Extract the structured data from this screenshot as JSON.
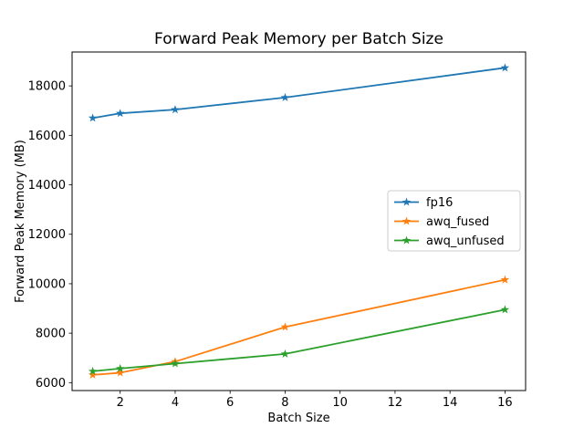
{
  "chart_data": {
    "type": "line",
    "title": "Forward Peak Memory per Batch Size",
    "xlabel": "Batch Size",
    "ylabel": "Forward Peak Memory (MB)",
    "x": [
      1,
      2,
      4,
      8,
      16
    ],
    "series": [
      {
        "name": "fp16",
        "color": "#1f77b4",
        "marker": "star",
        "values": [
          16700,
          16890,
          17040,
          17530,
          18730
        ]
      },
      {
        "name": "awq_fused",
        "color": "#ff7f0e",
        "marker": "star",
        "values": [
          6310,
          6400,
          6850,
          8250,
          10160
        ]
      },
      {
        "name": "awq_unfused",
        "color": "#2ca02c",
        "marker": "star",
        "values": [
          6460,
          6570,
          6770,
          7160,
          8950
        ]
      }
    ],
    "xticks": [
      2,
      4,
      6,
      8,
      10,
      12,
      14,
      16
    ],
    "yticks": [
      6000,
      8000,
      10000,
      12000,
      14000,
      16000,
      18000
    ],
    "xlim": [
      0.25,
      16.75
    ],
    "ylim": [
      5680,
      19370
    ],
    "grid": false,
    "legend_position": "center right",
    "background": "#ffffff",
    "spine_color": "#000000"
  }
}
